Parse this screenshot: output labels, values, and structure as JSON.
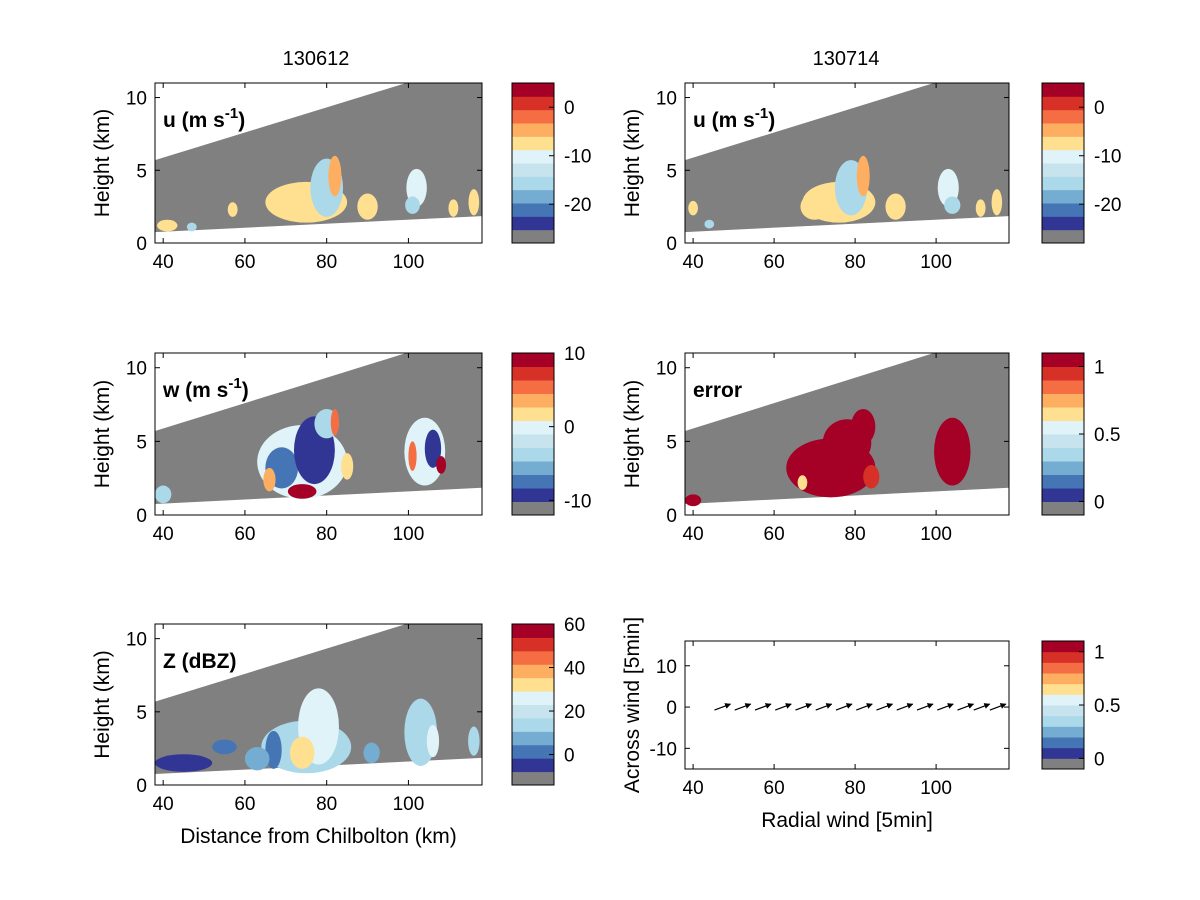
{
  "figure": {
    "column_titles": [
      "130612",
      "130714"
    ]
  },
  "chart_data": [
    {
      "id": "u-130612",
      "type": "heatmap",
      "label": "u (m s",
      "label_sup": "-1",
      "label_end": ")",
      "xlabel": "",
      "ylabel": "Height (km)",
      "xlim": [
        38,
        118
      ],
      "ylim": [
        0,
        11
      ],
      "xticks": [
        40,
        60,
        80,
        100
      ],
      "yticks": [
        0,
        5,
        10
      ],
      "colorbar": {
        "ticks": [
          0,
          -10,
          -20
        ],
        "range": [
          -28,
          5
        ]
      },
      "blobs": [
        {
          "x": 75,
          "y": 2.8,
          "rx": 10,
          "ry": 1.4,
          "c": "#fee090"
        },
        {
          "x": 80,
          "y": 3.8,
          "rx": 4,
          "ry": 2.0,
          "c": "#abd9e9"
        },
        {
          "x": 82,
          "y": 4.6,
          "rx": 1.6,
          "ry": 1.4,
          "c": "#fdae61"
        },
        {
          "x": 70,
          "y": 2.6,
          "rx": 4,
          "ry": 0.9,
          "c": "#fee090"
        },
        {
          "x": 90,
          "y": 2.5,
          "rx": 2.5,
          "ry": 0.9,
          "c": "#fee090"
        },
        {
          "x": 102,
          "y": 3.8,
          "rx": 2.5,
          "ry": 1.3,
          "c": "#e0f3f8"
        },
        {
          "x": 101,
          "y": 2.6,
          "rx": 1.8,
          "ry": 0.6,
          "c": "#abd9e9"
        },
        {
          "x": 111,
          "y": 2.4,
          "rx": 1.2,
          "ry": 0.6,
          "c": "#fee090"
        },
        {
          "x": 116,
          "y": 2.8,
          "rx": 1.3,
          "ry": 0.9,
          "c": "#fee090"
        },
        {
          "x": 41,
          "y": 1.2,
          "rx": 2.5,
          "ry": 0.4,
          "c": "#fee090"
        },
        {
          "x": 47,
          "y": 1.1,
          "rx": 1.2,
          "ry": 0.3,
          "c": "#abd9e9"
        },
        {
          "x": 57,
          "y": 2.3,
          "rx": 1.2,
          "ry": 0.5,
          "c": "#fee090"
        }
      ]
    },
    {
      "id": "u-130714",
      "type": "heatmap",
      "label": "u (m s",
      "label_sup": "-1",
      "label_end": ")",
      "xlabel": "",
      "ylabel": "Height (km)",
      "xlim": [
        38,
        118
      ],
      "ylim": [
        0,
        11
      ],
      "xticks": [
        40,
        60,
        80,
        100
      ],
      "yticks": [
        0,
        5,
        10
      ],
      "colorbar": {
        "ticks": [
          0,
          -10,
          -20
        ],
        "range": [
          -28,
          5
        ]
      },
      "blobs": [
        {
          "x": 76,
          "y": 2.8,
          "rx": 9,
          "ry": 1.4,
          "c": "#fee090"
        },
        {
          "x": 79,
          "y": 3.8,
          "rx": 4,
          "ry": 1.9,
          "c": "#abd9e9"
        },
        {
          "x": 82,
          "y": 4.6,
          "rx": 1.6,
          "ry": 1.4,
          "c": "#fdae61"
        },
        {
          "x": 70,
          "y": 2.5,
          "rx": 3.5,
          "ry": 0.9,
          "c": "#fee090"
        },
        {
          "x": 90,
          "y": 2.5,
          "rx": 2.5,
          "ry": 0.9,
          "c": "#fee090"
        },
        {
          "x": 103,
          "y": 3.8,
          "rx": 2.6,
          "ry": 1.3,
          "c": "#e0f3f8"
        },
        {
          "x": 104,
          "y": 2.6,
          "rx": 2,
          "ry": 0.6,
          "c": "#abd9e9"
        },
        {
          "x": 111,
          "y": 2.4,
          "rx": 1.2,
          "ry": 0.6,
          "c": "#fee090"
        },
        {
          "x": 115,
          "y": 2.8,
          "rx": 1.3,
          "ry": 0.9,
          "c": "#fee090"
        },
        {
          "x": 40,
          "y": 2.4,
          "rx": 1.2,
          "ry": 0.5,
          "c": "#fee090"
        },
        {
          "x": 44,
          "y": 1.3,
          "rx": 1.2,
          "ry": 0.3,
          "c": "#abd9e9"
        }
      ]
    },
    {
      "id": "w-130612",
      "type": "heatmap",
      "label": "w (m s",
      "label_sup": "-1",
      "label_end": ")",
      "xlabel": "",
      "ylabel": "Height (km)",
      "xlim": [
        38,
        118
      ],
      "ylim": [
        0,
        11
      ],
      "xticks": [
        40,
        60,
        80,
        100
      ],
      "yticks": [
        0,
        5,
        10
      ],
      "colorbar": {
        "ticks": [
          10,
          0,
          -10
        ],
        "range": [
          -12,
          10
        ]
      },
      "blobs": [
        {
          "x": 74,
          "y": 3.6,
          "rx": 11,
          "ry": 2.5,
          "c": "#e0f3f8"
        },
        {
          "x": 69,
          "y": 3.2,
          "rx": 4,
          "ry": 1.4,
          "c": "#4575b4"
        },
        {
          "x": 77,
          "y": 4.4,
          "rx": 5,
          "ry": 2.3,
          "c": "#313695"
        },
        {
          "x": 80,
          "y": 6.2,
          "rx": 3,
          "ry": 1.0,
          "c": "#abd9e9"
        },
        {
          "x": 82,
          "y": 6.3,
          "rx": 1,
          "ry": 0.9,
          "c": "#f46d43"
        },
        {
          "x": 74,
          "y": 1.6,
          "rx": 3.5,
          "ry": 0.5,
          "c": "#a50026"
        },
        {
          "x": 66,
          "y": 2.4,
          "rx": 1.5,
          "ry": 0.8,
          "c": "#fdae61"
        },
        {
          "x": 85,
          "y": 3.3,
          "rx": 1.5,
          "ry": 0.9,
          "c": "#fee090"
        },
        {
          "x": 104,
          "y": 4.3,
          "rx": 5,
          "ry": 2.3,
          "c": "#e0f3f8"
        },
        {
          "x": 106,
          "y": 4.5,
          "rx": 2,
          "ry": 1.3,
          "c": "#313695"
        },
        {
          "x": 101,
          "y": 4.0,
          "rx": 1,
          "ry": 1.0,
          "c": "#f46d43"
        },
        {
          "x": 108,
          "y": 3.4,
          "rx": 1.2,
          "ry": 0.6,
          "c": "#a50026"
        },
        {
          "x": 40,
          "y": 1.4,
          "rx": 2,
          "ry": 0.6,
          "c": "#abd9e9"
        }
      ]
    },
    {
      "id": "error-130714",
      "type": "heatmap",
      "label": "error",
      "label_sup": "",
      "label_end": "",
      "xlabel": "",
      "ylabel": "Height (km)",
      "xlim": [
        38,
        118
      ],
      "ylim": [
        0,
        11
      ],
      "xticks": [
        40,
        60,
        80,
        100
      ],
      "yticks": [
        0,
        5,
        10
      ],
      "colorbar": {
        "ticks": [
          1,
          0.5,
          0
        ],
        "range": [
          -0.1,
          1.1
        ]
      },
      "blobs": [
        {
          "x": 74,
          "y": 3.2,
          "rx": 11,
          "ry": 2.0,
          "c": "#a50026"
        },
        {
          "x": 78,
          "y": 4.9,
          "rx": 6,
          "ry": 1.6,
          "c": "#a50026"
        },
        {
          "x": 82,
          "y": 6.0,
          "rx": 3,
          "ry": 1.2,
          "c": "#a50026"
        },
        {
          "x": 84,
          "y": 2.6,
          "rx": 2,
          "ry": 0.8,
          "c": "#d73027"
        },
        {
          "x": 67,
          "y": 2.2,
          "rx": 1.2,
          "ry": 0.5,
          "c": "#fee090"
        },
        {
          "x": 104,
          "y": 4.3,
          "rx": 4.5,
          "ry": 2.3,
          "c": "#a50026"
        },
        {
          "x": 40,
          "y": 1.0,
          "rx": 2,
          "ry": 0.4,
          "c": "#a50026"
        }
      ]
    },
    {
      "id": "Z-130612",
      "type": "heatmap",
      "label": "Z (dBZ)",
      "label_sup": "",
      "label_end": "",
      "xlabel": "Distance from Chilbolton (km)",
      "ylabel": "Height (km)",
      "xlim": [
        38,
        118
      ],
      "ylim": [
        0,
        11
      ],
      "xticks": [
        40,
        60,
        80,
        100
      ],
      "yticks": [
        0,
        5,
        10
      ],
      "colorbar": {
        "ticks": [
          60,
          40,
          20,
          0
        ],
        "range": [
          -14,
          60
        ]
      },
      "blobs": [
        {
          "x": 75,
          "y": 2.6,
          "rx": 11,
          "ry": 1.8,
          "c": "#abd9e9"
        },
        {
          "x": 78,
          "y": 4.0,
          "rx": 5,
          "ry": 2.6,
          "c": "#e0f3f8"
        },
        {
          "x": 74,
          "y": 2.2,
          "rx": 3,
          "ry": 1.1,
          "c": "#fee090"
        },
        {
          "x": 67,
          "y": 2.4,
          "rx": 2,
          "ry": 1.3,
          "c": "#4575b4"
        },
        {
          "x": 63,
          "y": 1.8,
          "rx": 3,
          "ry": 0.8,
          "c": "#74add1"
        },
        {
          "x": 103,
          "y": 3.6,
          "rx": 4,
          "ry": 2.3,
          "c": "#abd9e9"
        },
        {
          "x": 106,
          "y": 3.0,
          "rx": 1.5,
          "ry": 1.1,
          "c": "#e0f3f8"
        },
        {
          "x": 116,
          "y": 3.0,
          "rx": 1.4,
          "ry": 1.0,
          "c": "#abd9e9"
        },
        {
          "x": 45,
          "y": 1.5,
          "rx": 7,
          "ry": 0.6,
          "c": "#313695"
        },
        {
          "x": 55,
          "y": 2.6,
          "rx": 3,
          "ry": 0.5,
          "c": "#4575b4"
        },
        {
          "x": 91,
          "y": 2.2,
          "rx": 2,
          "ry": 0.7,
          "c": "#74add1"
        }
      ]
    },
    {
      "id": "vectors",
      "type": "scatter",
      "xlabel": "Radial wind [5min]",
      "ylabel": "Across wind [5min]",
      "xlim": [
        38,
        118
      ],
      "ylim": [
        -15,
        16
      ],
      "xticks": [
        40,
        60,
        80,
        100
      ],
      "yticks": [
        10,
        0,
        -10
      ],
      "colorbar": {
        "ticks": [
          1,
          0.5,
          0
        ],
        "range": [
          -0.1,
          1.1
        ]
      },
      "x": [
        48,
        53,
        58,
        63,
        68,
        73,
        78,
        83,
        88,
        93,
        98,
        103,
        108,
        112,
        116
      ],
      "y": [
        0,
        0,
        0,
        0,
        0,
        0,
        0,
        0,
        0,
        0,
        0,
        0,
        0,
        0,
        0
      ]
    }
  ],
  "colors": {
    "masked": "#808080",
    "colormap": [
      "#313695",
      "#4575b4",
      "#74add1",
      "#abd9e9",
      "#e0f3f8",
      "#fee090",
      "#fdae61",
      "#f46d43",
      "#d73027",
      "#a50026"
    ],
    "colormap_full": [
      "#313695",
      "#4575b4",
      "#74add1",
      "#abd9e9",
      "#c6e3ee",
      "#e0f3f8",
      "#fee090",
      "#fdae61",
      "#f46d43",
      "#d73027",
      "#a50026"
    ]
  }
}
